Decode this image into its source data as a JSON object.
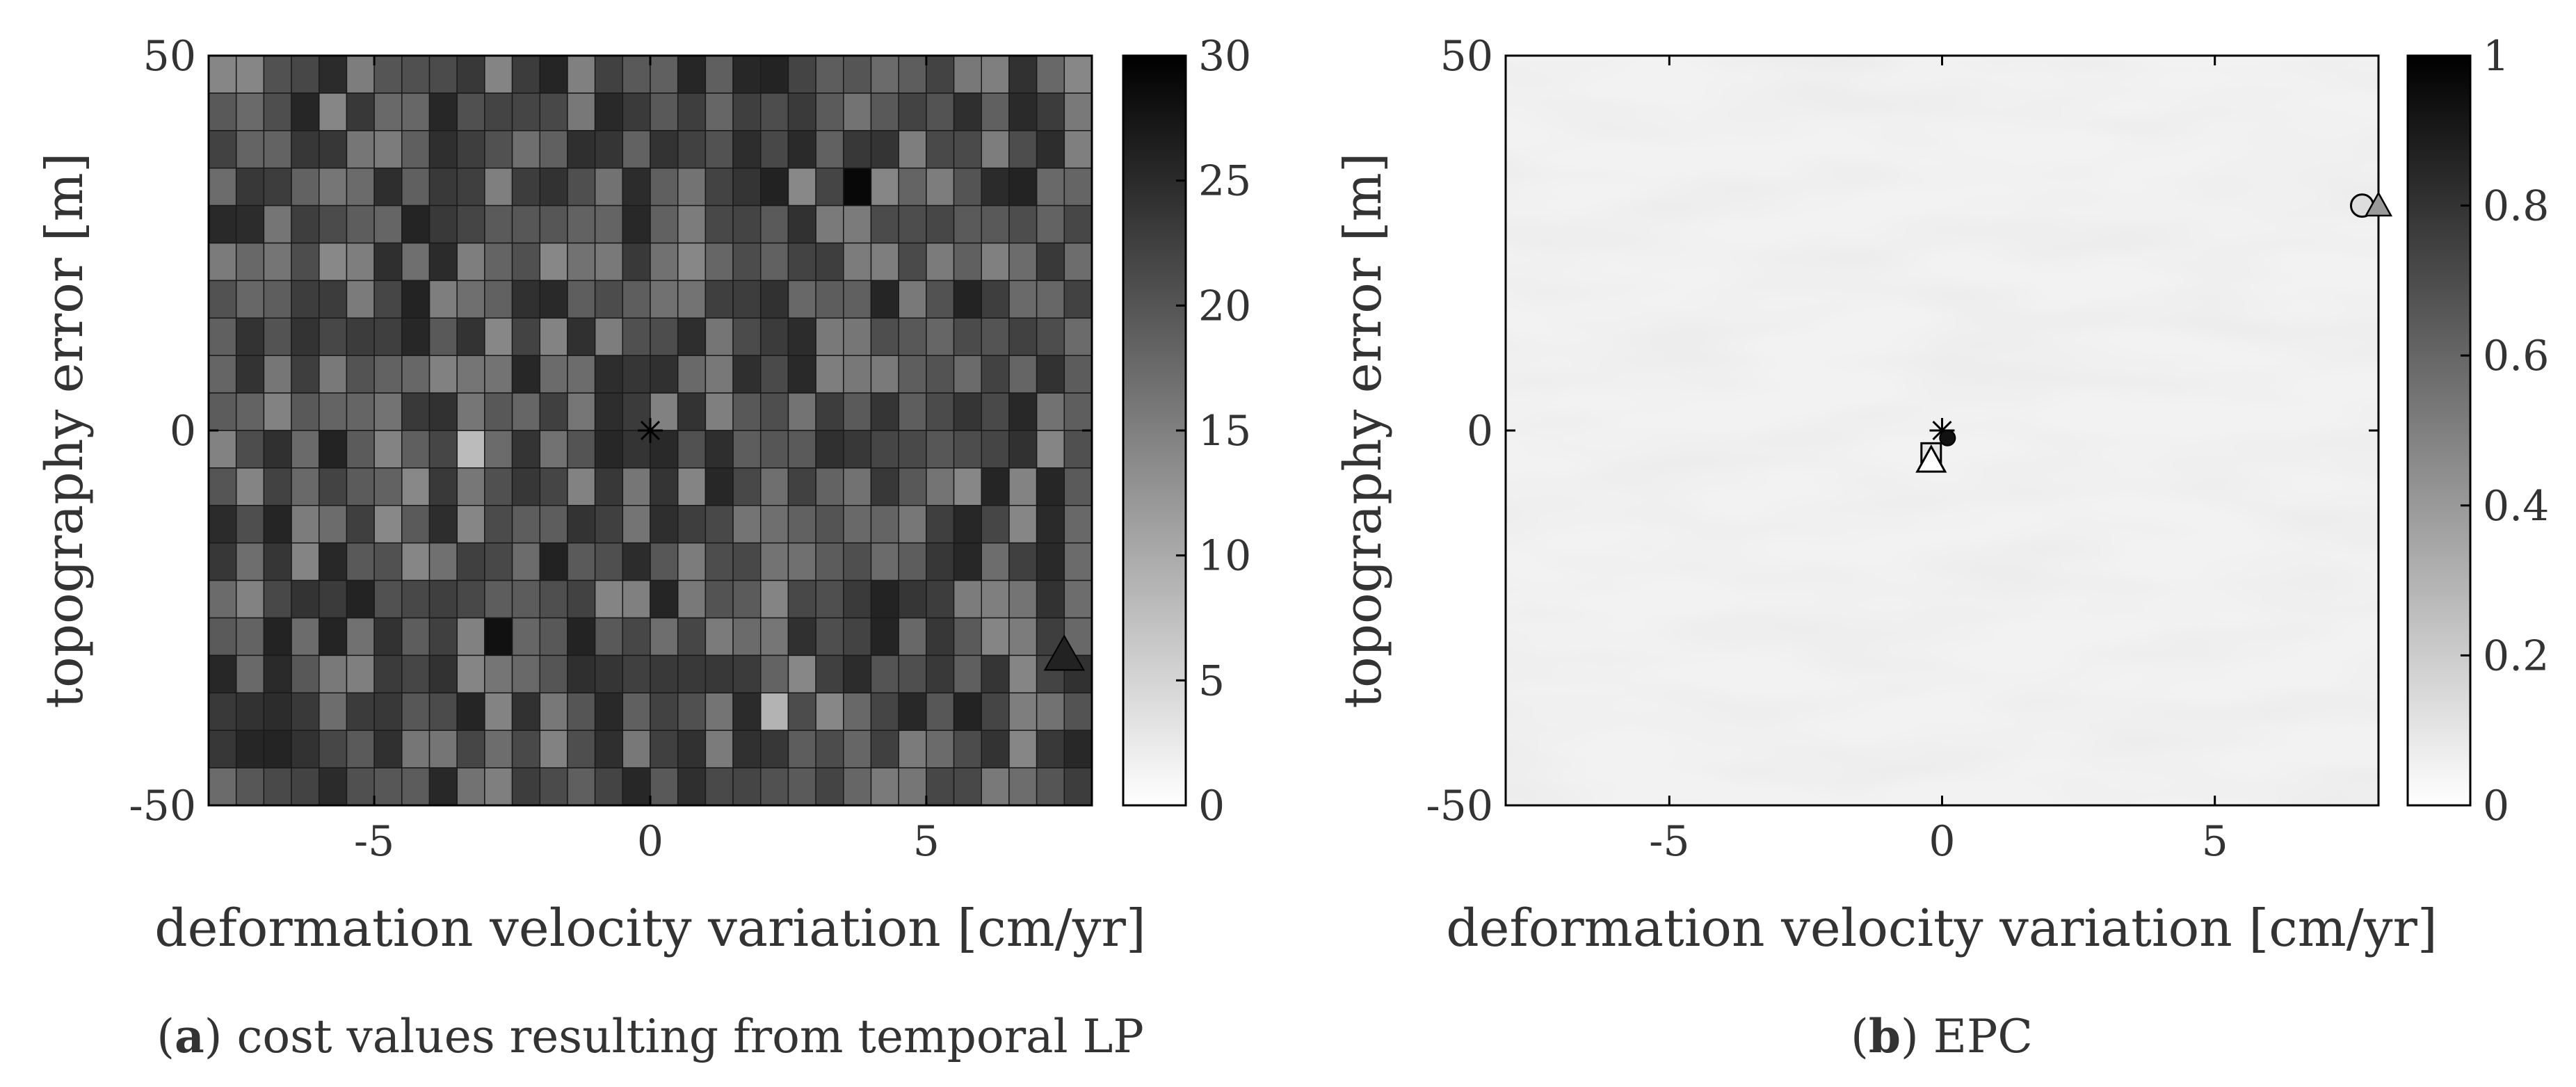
{
  "chart_data": [
    {
      "type": "heatmap",
      "panel_letter": "a",
      "caption": "cost values resulting from temporal LP",
      "xlabel": "deformation velocity variation [cm/yr]",
      "ylabel": "topography error [m]",
      "xlim": [
        -8,
        8
      ],
      "ylim": [
        -50,
        50
      ],
      "x_ticks": [
        "-5",
        "0",
        "5"
      ],
      "y_ticks": [
        "-50",
        "0",
        "50"
      ],
      "colorbar": {
        "range": [
          0,
          30
        ],
        "ticks": [
          "0",
          "5",
          "10",
          "15",
          "20",
          "25",
          "30"
        ]
      },
      "colormap": [
        "#ffffff",
        "#000000"
      ],
      "grid": {
        "cols": 32,
        "rows": 20,
        "value_mean": 20,
        "value_spread": 6
      },
      "cells": [
        {
          "col": 23,
          "row": 3,
          "value": 29
        },
        {
          "col": 10,
          "row": 15,
          "value": 28
        },
        {
          "col": 9,
          "row": 10,
          "value": 8
        },
        {
          "col": 20,
          "row": 17,
          "value": 9
        }
      ],
      "markers": [
        {
          "symbol": "asterisk",
          "x": 0,
          "y": 0
        },
        {
          "symbol": "triangle-filled",
          "x": 7.5,
          "y": -30
        }
      ]
    },
    {
      "type": "heatmap",
      "panel_letter": "b",
      "caption": "EPC",
      "xlabel": "deformation velocity variation [cm/yr]",
      "ylabel": "topography error [m]",
      "xlim": [
        -8,
        8
      ],
      "ylim": [
        -50,
        50
      ],
      "x_ticks": [
        "-5",
        "0",
        "5"
      ],
      "y_ticks": [
        "-50",
        "0",
        "50"
      ],
      "colorbar": {
        "range": [
          0,
          1
        ],
        "ticks": [
          "0",
          "0.2",
          "0.4",
          "0.6",
          "0.8",
          "1"
        ]
      },
      "colormap": [
        "#ffffff",
        "#000000"
      ],
      "field": {
        "value_range": [
          0.02,
          0.16
        ]
      },
      "markers": [
        {
          "symbol": "asterisk",
          "x": 0,
          "y": 0
        },
        {
          "symbol": "dot",
          "x": 0.1,
          "y": -1
        },
        {
          "symbol": "square",
          "x": -0.2,
          "y": -3
        },
        {
          "symbol": "triangle",
          "x": -0.2,
          "y": -4
        },
        {
          "symbol": "circle",
          "x": 7.7,
          "y": 30
        },
        {
          "symbol": "triangle-gray",
          "x": 8.0,
          "y": 30
        }
      ]
    }
  ]
}
